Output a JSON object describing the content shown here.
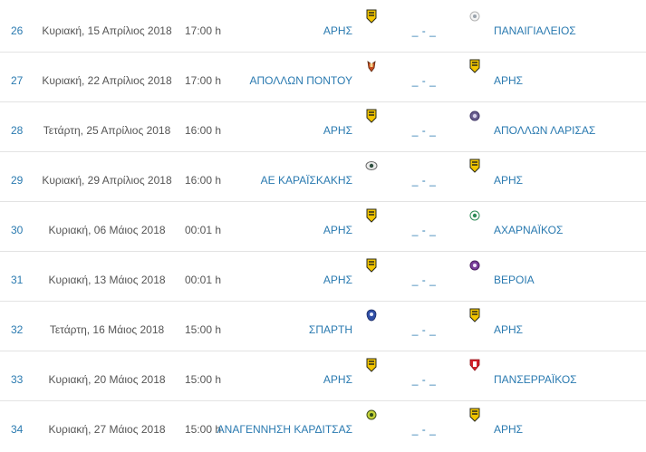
{
  "fixtures": [
    {
      "round": "26",
      "date": "Κυριακή, 15 Απρίλιος 2018",
      "time": "17:00 h",
      "home": "ΑΡΗΣ",
      "home_logo": "aris-crest-icon",
      "score": "_ - _",
      "away": "ΠΑΝΑΙΓΙΑΛΕΙΟΣ",
      "away_logo": "panaigialeios-crest-icon"
    },
    {
      "round": "27",
      "date": "Κυριακή, 22 Απρίλιος 2018",
      "time": "17:00 h",
      "home": "ΑΠΟΛΛΩΝ ΠΟΝΤΟΥ",
      "home_logo": "apollon-pontou-crest-icon",
      "score": "_ - _",
      "away": "ΑΡΗΣ",
      "away_logo": "aris-crest-icon"
    },
    {
      "round": "28",
      "date": "Τετάρτη, 25 Απρίλιος 2018",
      "time": "16:00 h",
      "home": "ΑΡΗΣ",
      "home_logo": "aris-crest-icon",
      "score": "_ - _",
      "away": "ΑΠΟΛΛΩΝ ΛΑΡΙΣΑΣ",
      "away_logo": "apollon-larisas-crest-icon"
    },
    {
      "round": "29",
      "date": "Κυριακή, 29 Απρίλιος 2018",
      "time": "16:00 h",
      "home": "ΑΕ ΚΑΡΑΪΣΚΑΚΗΣ",
      "home_logo": "karaiskakis-crest-icon",
      "score": "_ - _",
      "away": "ΑΡΗΣ",
      "away_logo": "aris-crest-icon"
    },
    {
      "round": "30",
      "date": "Κυριακή, 06 Μάιος 2018",
      "time": "00:01 h",
      "home": "ΑΡΗΣ",
      "home_logo": "aris-crest-icon",
      "score": "_ - _",
      "away": "ΑΧΑΡΝΑΪΚΟΣ",
      "away_logo": "acharnaikos-crest-icon"
    },
    {
      "round": "31",
      "date": "Κυριακή, 13 Μάιος 2018",
      "time": "00:01 h",
      "home": "ΑΡΗΣ",
      "home_logo": "aris-crest-icon",
      "score": "_ - _",
      "away": "ΒΕΡΟΙΑ",
      "away_logo": "veroia-crest-icon"
    },
    {
      "round": "32",
      "date": "Τετάρτη, 16 Μάιος 2018",
      "time": "15:00 h",
      "home": "ΣΠΑΡΤΗ",
      "home_logo": "sparti-crest-icon",
      "score": "_ - _",
      "away": "ΑΡΗΣ",
      "away_logo": "aris-crest-icon"
    },
    {
      "round": "33",
      "date": "Κυριακή, 20 Μάιος 2018",
      "time": "15:00 h",
      "home": "ΑΡΗΣ",
      "home_logo": "aris-crest-icon",
      "score": "_ - _",
      "away": "ΠΑΝΣΕΡΡΑΪΚΟΣ",
      "away_logo": "panserraikos-crest-icon"
    },
    {
      "round": "34",
      "date": "Κυριακή, 27 Μάιος 2018",
      "time": "15:00 h",
      "home": "ΑΝΑΓΕΝΝΗΣΗ ΚΑΡΔΙΤΣΑΣ",
      "home_logo": "anagennisi-karditsas-crest-icon",
      "score": "_ - _",
      "away": "ΑΡΗΣ",
      "away_logo": "aris-crest-icon"
    }
  ],
  "colors": {
    "link": "#2a7ab0",
    "text": "#555555",
    "divider": "#e3e3e3",
    "aris_yellow": "#f2c500",
    "aris_dark": "#2b2b1a"
  }
}
